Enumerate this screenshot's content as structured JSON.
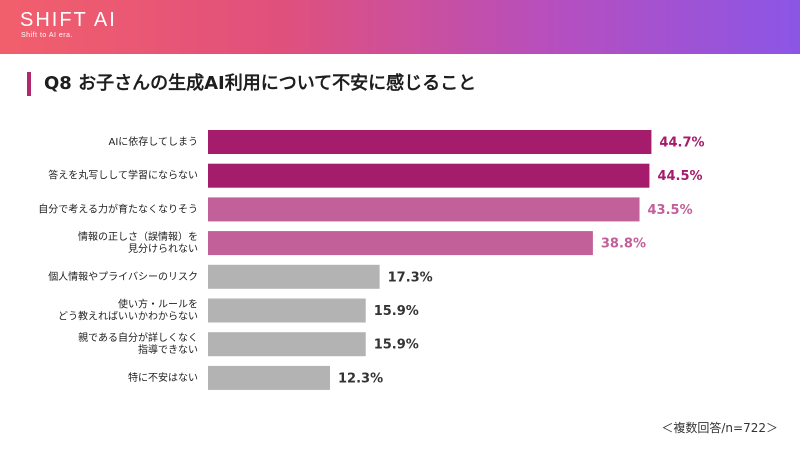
{
  "header": {
    "logo": "SHIFT AI",
    "tagline": "Shift to AI era."
  },
  "title": "Q8  お子さんの生成AI利用について不安に感じること",
  "footnote": "＜複数回答/n=722＞",
  "colors": {
    "highlight": "#a61c6c",
    "secondary": "#c2609a",
    "neutral": "#b3b3b3",
    "title_accent": "#b0296e"
  },
  "chart_data": {
    "type": "bar",
    "orientation": "horizontal",
    "categories": [
      [
        "AIに依存してしまう"
      ],
      [
        "答えを丸写しして学習にならない"
      ],
      [
        "自分で考える力が育たなくなりそう"
      ],
      [
        "情報の正しさ（誤情報）を",
        "見分けられない"
      ],
      [
        "個人情報やプライバシーのリスク"
      ],
      [
        "使い方・ルールを",
        "どう教えればいいかわからない"
      ],
      [
        "親である自分が詳しくなく",
        "指導できない"
      ],
      [
        "特に不安はない"
      ]
    ],
    "values": [
      44.7,
      44.5,
      43.5,
      38.8,
      17.3,
      15.9,
      15.9,
      12.3
    ],
    "value_labels": [
      "44.7%",
      "44.5%",
      "43.5%",
      "38.8%",
      "17.3%",
      "15.9%",
      "15.9%",
      "12.3%"
    ],
    "bar_color_keys": [
      "highlight",
      "highlight",
      "secondary",
      "secondary",
      "neutral",
      "neutral",
      "neutral",
      "neutral"
    ],
    "xlim": [
      0,
      50
    ],
    "grid": false,
    "legend": "none"
  }
}
